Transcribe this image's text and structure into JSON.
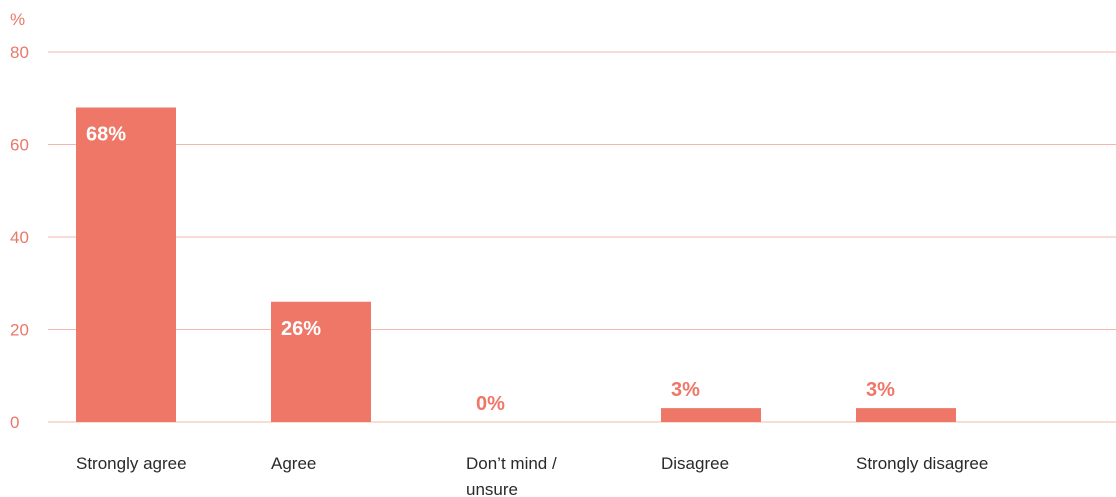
{
  "chart_data": {
    "type": "bar",
    "title": "",
    "xlabel": "",
    "ylabel": "%",
    "categories": [
      "Strongly agree",
      "Agree",
      "Don’t mind / unsure",
      "Disagree",
      "Strongly disagree"
    ],
    "category_lines": [
      [
        "Strongly agree"
      ],
      [
        "Agree"
      ],
      [
        "Don’t mind /",
        "unsure"
      ],
      [
        "Disagree"
      ],
      [
        "Strongly disagree"
      ]
    ],
    "values": [
      68,
      26,
      0,
      3,
      3
    ],
    "value_labels": [
      "68%",
      "26%",
      "0%",
      "3%",
      "3%"
    ],
    "ylim": [
      0,
      80
    ],
    "yticks": [
      0,
      20,
      40,
      60,
      80
    ],
    "grid": true,
    "legend": "none",
    "colors": {
      "bar": "#ee7768",
      "axis_text": "#e8796b",
      "grid": "#f2b8ae",
      "category_text": "#2a2a2a",
      "label_inside": "#ffffff",
      "label_outside": "#ee7768"
    }
  }
}
